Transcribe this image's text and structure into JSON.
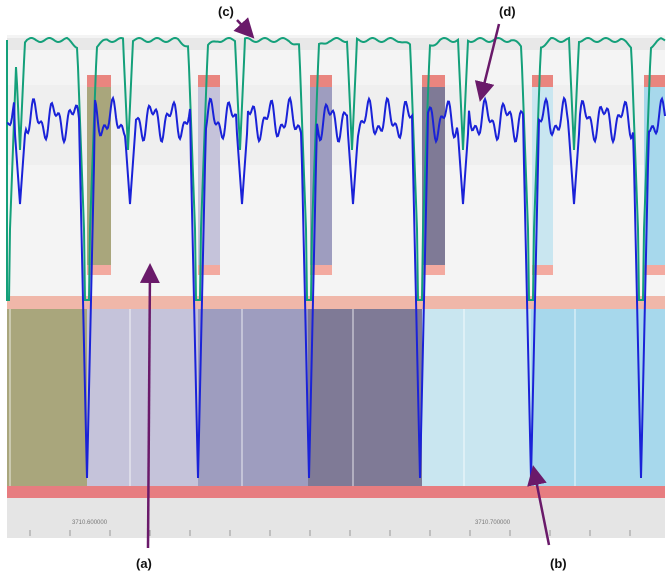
{
  "callouts": {
    "a": "(a)",
    "b": "(b)",
    "c": "(c)",
    "d": "(d)"
  },
  "colors": {
    "background_plot": "#f3f3f3",
    "background_band": "#e6e6e6",
    "pink_strip_light": "#f0b7a9",
    "red_strip": "#e77d80",
    "green_trace": "#14a07a",
    "blue_trace": "#1a22d8",
    "arrow": "#6a1a6a",
    "segment_colors": [
      "#a9a67c",
      "#c5c3da",
      "#9e9dbf",
      "#7f7a96",
      "#c9e6f0",
      "#a7d8ec"
    ]
  },
  "chart_data": {
    "type": "line",
    "x_ticks": [
      "3710.600000",
      "3710.700000"
    ],
    "series": [
      {
        "trace": "green",
        "description_visible": false
      },
      {
        "trace": "blue",
        "description_visible": false
      }
    ],
    "segments": 6,
    "grid": true
  }
}
